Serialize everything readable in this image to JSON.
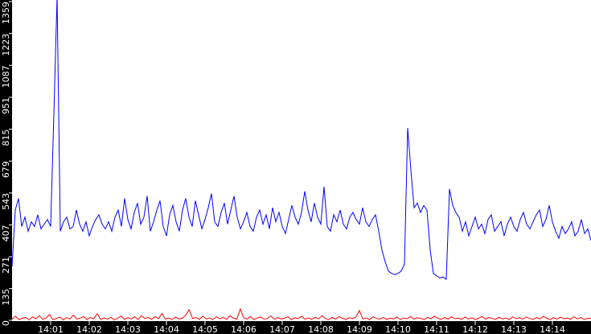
{
  "chart_data": {
    "type": "line",
    "title": "",
    "xlabel": "",
    "ylabel": "",
    "xlim": [
      "14:00:00",
      "14:15:00"
    ],
    "ylim": [
      0,
      1359
    ],
    "grid": false,
    "legend": "none",
    "y_ticks": [
      "0",
      "135",
      "271",
      "407",
      "543",
      "679",
      "815",
      "951",
      "1087",
      "1223",
      "1359"
    ],
    "x_ticks": [
      "14:01",
      "14:02",
      "14:03",
      "14:04",
      "14:05",
      "14:06",
      "14:07",
      "14:08",
      "14:09",
      "14:10",
      "14:11",
      "14:12",
      "14:13",
      "14:14"
    ],
    "series": [
      {
        "color": "#0000ff",
        "values": [
          230,
          470,
          520,
          400,
          440,
          380,
          420,
          400,
          450,
          390,
          410,
          430,
          400,
          880,
          1400,
          380,
          420,
          440,
          390,
          400,
          470,
          410,
          380,
          420,
          360,
          400,
          430,
          450,
          410,
          390,
          420,
          380,
          440,
          470,
          400,
          520,
          430,
          390,
          460,
          500,
          410,
          440,
          530,
          380,
          420,
          470,
          510,
          400,
          360,
          450,
          490,
          420,
          380,
          470,
          520,
          440,
          400,
          510,
          450,
          390,
          430,
          480,
          540,
          420,
          400,
          460,
          500,
          410,
          470,
          530,
          440,
          390,
          420,
          460,
          400,
          380,
          440,
          470,
          410,
          450,
          390,
          480,
          420,
          460,
          400,
          370,
          430,
          490,
          440,
          410,
          460,
          550,
          470,
          420,
          500,
          440,
          410,
          570,
          400,
          380,
          450,
          420,
          470,
          410,
          390,
          440,
          460,
          430,
          410,
          480,
          420,
          400,
          430,
          450,
          380,
          300,
          250,
          210,
          200,
          195,
          200,
          210,
          240,
          820,
          640,
          480,
          500,
          460,
          490,
          470,
          300,
          200,
          190,
          180,
          185,
          175,
          560,
          490,
          460,
          440,
          380,
          420,
          360,
          400,
          440,
          390,
          410,
          370,
          430,
          450,
          380,
          400,
          420,
          360,
          410,
          440,
          400,
          380,
          430,
          460,
          410,
          390,
          420,
          450,
          470,
          400,
          430,
          490,
          420,
          380,
          350,
          400,
          370,
          390,
          420,
          360,
          380,
          430,
          370,
          390,
          340
        ]
      },
      {
        "color": "#ff0000",
        "values": [
          5,
          18,
          3,
          9,
          12,
          2,
          15,
          6,
          20,
          4,
          10,
          25,
          3,
          8,
          14,
          2,
          11,
          6,
          22,
          5,
          9,
          16,
          3,
          12,
          7,
          28,
          4,
          10,
          5,
          13,
          2,
          9,
          18,
          4,
          11,
          6,
          15,
          3,
          20,
          8,
          12,
          4,
          16,
          7,
          30,
          5,
          10,
          3,
          14,
          6,
          9,
          22,
          45,
          8,
          12,
          4,
          18,
          6,
          10,
          3,
          15,
          7,
          12,
          4,
          20,
          9,
          5,
          48,
          11,
          6,
          16,
          3,
          10,
          14,
          5,
          8,
          19,
          4,
          12,
          6,
          9,
          15,
          3,
          11,
          7,
          18,
          5,
          10,
          4,
          13,
          6,
          20,
          8,
          3,
          12,
          5,
          16,
          9,
          4,
          11,
          7,
          14,
          42,
          6,
          10,
          3,
          15,
          8,
          5,
          12,
          4,
          9,
          6,
          14,
          3,
          10,
          7,
          16,
          5,
          11,
          8,
          4,
          13,
          6,
          18,
          9,
          3,
          12,
          5,
          15,
          7,
          10,
          4,
          14,
          6,
          11,
          3,
          9,
          16,
          5,
          12,
          8,
          4,
          13,
          6,
          10,
          3,
          15,
          7,
          11,
          5,
          14,
          8,
          4,
          12,
          6,
          17,
          9,
          3,
          11,
          5,
          13,
          7,
          10,
          4,
          15,
          6,
          12,
          3,
          9,
          8
        ]
      }
    ]
  }
}
